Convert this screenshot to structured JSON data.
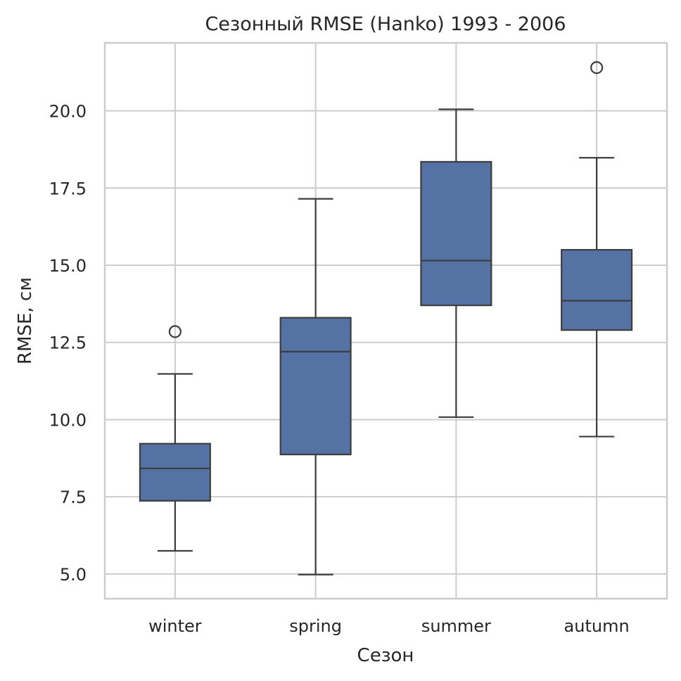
{
  "chart_data": {
    "type": "boxplot",
    "title": "Сезонный RMSE (Hanko) 1993 - 2006",
    "xlabel": "Сезон",
    "ylabel": "RMSE, см",
    "ylim": [
      4.2,
      22.2
    ],
    "yticks": [
      5.0,
      7.5,
      10.0,
      12.5,
      15.0,
      17.5,
      20.0
    ],
    "ytick_labels": [
      "5.0",
      "7.5",
      "10.0",
      "12.5",
      "15.0",
      "17.5",
      "20.0"
    ],
    "grid": true,
    "categories": [
      "winter",
      "spring",
      "summer",
      "autumn"
    ],
    "boxes": [
      {
        "category": "winter",
        "whisker_low": 5.75,
        "q1": 7.37,
        "median": 8.42,
        "q3": 9.22,
        "whisker_high": 11.48,
        "outliers": [
          12.85
        ]
      },
      {
        "category": "spring",
        "whisker_low": 4.98,
        "q1": 8.87,
        "median": 12.2,
        "q3": 13.3,
        "whisker_high": 17.15,
        "outliers": []
      },
      {
        "category": "summer",
        "whisker_low": 10.08,
        "q1": 13.7,
        "median": 15.15,
        "q3": 18.35,
        "whisker_high": 20.05,
        "outliers": []
      },
      {
        "category": "autumn",
        "whisker_low": 9.45,
        "q1": 12.9,
        "median": 13.85,
        "q3": 15.5,
        "whisker_high": 18.48,
        "outliers": [
          21.4
        ]
      }
    ],
    "colors": {
      "box_fill": "#5572a4",
      "line": "#3d3d3d",
      "grid": "#cccccc",
      "text": "#262626"
    }
  }
}
